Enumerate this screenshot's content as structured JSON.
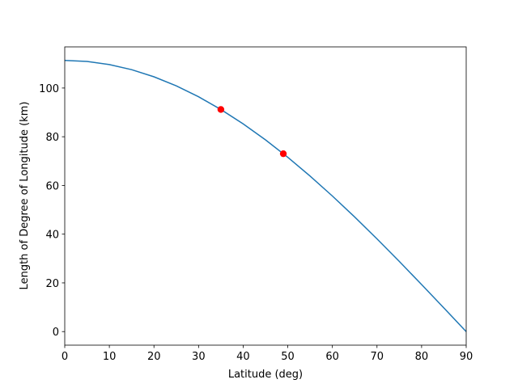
{
  "chart_data": {
    "type": "line",
    "xlabel": "Latitude (deg)",
    "ylabel": "Length of Degree of Longitude (km)",
    "series": [
      {
        "color": "#1f77b4",
        "x": [
          0,
          5,
          10,
          15,
          20,
          25,
          30,
          35,
          40,
          45,
          50,
          55,
          60,
          65,
          70,
          75,
          80,
          85,
          90
        ],
        "values": [
          111.32,
          110.9,
          109.63,
          107.53,
          104.61,
          100.89,
          96.41,
          91.19,
          85.28,
          78.72,
          71.56,
          63.85,
          55.66,
          47.05,
          38.07,
          28.81,
          19.33,
          9.7,
          0
        ]
      }
    ],
    "points": {
      "color": "#ff0000",
      "x": [
        35,
        49
      ],
      "values": [
        91.19,
        73.03
      ]
    },
    "xlim": [
      0,
      90
    ],
    "ylim": [
      -5.57,
      116.89
    ],
    "xticks": [
      0,
      10,
      20,
      30,
      40,
      50,
      60,
      70,
      80,
      90
    ],
    "yticks": [
      0,
      20,
      40,
      60,
      80,
      100
    ]
  }
}
